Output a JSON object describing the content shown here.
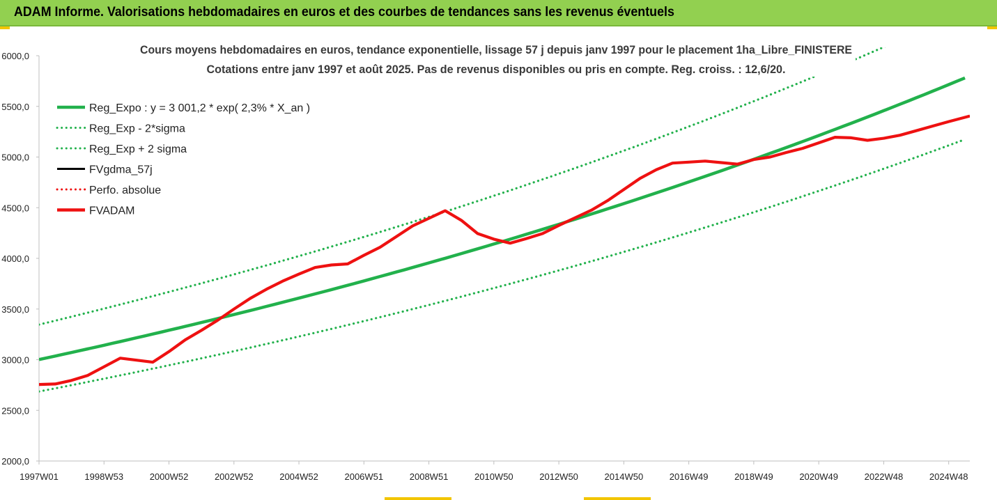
{
  "header": {
    "title": "ADAM Informe. Valorisations hebdomadaires en euros et des courbes de tendances sans les revenus éventuels"
  },
  "colors": {
    "banner": "#92d050",
    "regression": "#22b14c",
    "fvadam": "#ee1111",
    "fvgdma": "#000000",
    "perfo": "#ee1111"
  },
  "chart_data": {
    "type": "line",
    "title": "Cours moyens hebdomadaires en euros, tendance exponentielle, lissage 57 j depuis janv 1997 pour le placement 1ha_Libre_FINISTERE",
    "subtitle": "Cotations entre janv 1997 et août 2025. Pas de revenus disponibles ou pris en compte. Reg. croiss. : 12,6/20.",
    "xlabel": "",
    "ylabel": "",
    "ylim": [
      2000,
      6000
    ],
    "xlim": [
      1997.0,
      2025.65
    ],
    "yticks": [
      2000,
      2500,
      3000,
      3500,
      4000,
      4500,
      5000,
      5500,
      6000
    ],
    "ytick_labels": [
      "2000,0",
      "2500,0",
      "3000,0",
      "3500,0",
      "4000,0",
      "4500,0",
      "5000,0",
      "5500,0",
      "6000,0"
    ],
    "xticks": [
      1997.0,
      1999.0,
      2001.0,
      2003.0,
      2005.0,
      2007.0,
      2009.0,
      2011.0,
      2013.0,
      2015.0,
      2017.0,
      2019.0,
      2021.0,
      2023.0,
      2025.0
    ],
    "xtick_labels": [
      "1997W01",
      "1998W53",
      "2000W52",
      "2002W52",
      "2004W52",
      "2006W51",
      "2008W51",
      "2010W50",
      "2012W50",
      "2014W50",
      "2016W49",
      "2018W49",
      "2020W49",
      "2022W48",
      "2024W48"
    ],
    "grid": false,
    "legend_position": "top-left",
    "legend": [
      {
        "label": "Reg_Expo : y = 3 001,2 * exp( 2,3% *  X_an )",
        "style": "solid-thick",
        "color": "#22b14c"
      },
      {
        "label": "Reg_Exp - 2*sigma",
        "style": "dotted",
        "color": "#22b14c"
      },
      {
        "label": "Reg_Exp + 2 sigma",
        "style": "dotted",
        "color": "#22b14c"
      },
      {
        "label": "FVgdma_57j",
        "style": "solid",
        "color": "#000000"
      },
      {
        "label": "Perfo. absolue",
        "style": "dotted",
        "color": "#ee1111"
      },
      {
        "label": "FVADAM",
        "style": "solid-thick",
        "color": "#ee1111"
      }
    ],
    "regression": {
      "a": 3001.2,
      "rate": 0.023,
      "lower_factor": 0.895,
      "upper_factor": 1.115
    },
    "series": [
      {
        "name": "FVADAM",
        "x": [
          1997.0,
          1997.5,
          1998.0,
          1998.5,
          1999.0,
          1999.5,
          2000.0,
          2000.5,
          2001.0,
          2001.5,
          2002.0,
          2002.5,
          2003.0,
          2003.5,
          2004.0,
          2004.5,
          2005.0,
          2005.5,
          2006.0,
          2006.5,
          2007.0,
          2007.5,
          2008.0,
          2008.5,
          2009.0,
          2009.5,
          2010.0,
          2010.5,
          2011.0,
          2011.5,
          2012.0,
          2012.5,
          2013.0,
          2013.5,
          2014.0,
          2014.5,
          2015.0,
          2015.5,
          2016.0,
          2016.5,
          2017.0,
          2017.5,
          2018.0,
          2018.5,
          2019.0,
          2019.5,
          2020.0,
          2020.5,
          2021.0,
          2021.5,
          2022.0,
          2022.5,
          2023.0,
          2023.5,
          2024.0,
          2024.5,
          2025.0,
          2025.65
        ],
        "values": [
          2755,
          2760,
          2795,
          2845,
          2930,
          3015,
          2995,
          2975,
          3080,
          3195,
          3290,
          3390,
          3500,
          3605,
          3695,
          3775,
          3845,
          3910,
          3935,
          3945,
          4030,
          4110,
          4215,
          4320,
          4395,
          4470,
          4375,
          4245,
          4190,
          4150,
          4195,
          4245,
          4325,
          4400,
          4475,
          4570,
          4680,
          4790,
          4875,
          4940,
          4950,
          4960,
          4945,
          4930,
          4975,
          5000,
          5045,
          5085,
          5140,
          5195,
          5190,
          5165,
          5185,
          5215,
          5260,
          5305,
          5350,
          5405
        ]
      },
      {
        "name": "FVgdma_57j",
        "x": [
          1997.0,
          1997.5,
          1998.0,
          1998.5,
          1999.0,
          1999.5,
          2000.0,
          2000.5,
          2001.0,
          2001.5,
          2002.0,
          2002.5,
          2003.0,
          2003.5,
          2004.0,
          2004.5,
          2005.0,
          2005.5,
          2006.0,
          2006.5,
          2007.0,
          2007.5,
          2008.0,
          2008.5,
          2009.0,
          2009.5,
          2010.0,
          2010.5,
          2011.0,
          2011.5,
          2012.0,
          2012.5,
          2013.0,
          2013.5,
          2014.0,
          2014.5,
          2015.0,
          2015.5,
          2016.0,
          2016.5,
          2017.0,
          2017.5,
          2018.0,
          2018.5,
          2019.0,
          2019.5,
          2020.0,
          2020.5,
          2021.0,
          2021.5,
          2022.0,
          2022.5,
          2023.0,
          2023.5,
          2024.0,
          2024.5,
          2025.0,
          2025.65
        ],
        "values": [
          2755,
          2760,
          2795,
          2845,
          2930,
          3015,
          2995,
          2975,
          3080,
          3195,
          3290,
          3390,
          3500,
          3605,
          3695,
          3775,
          3845,
          3910,
          3935,
          3945,
          4030,
          4110,
          4215,
          4320,
          4395,
          4470,
          4375,
          4245,
          4190,
          4150,
          4195,
          4245,
          4325,
          4400,
          4475,
          4570,
          4680,
          4790,
          4875,
          4940,
          4950,
          4960,
          4945,
          4930,
          4975,
          5000,
          5045,
          5085,
          5140,
          5195,
          5190,
          5165,
          5185,
          5215,
          5260,
          5305,
          5350,
          5405
        ]
      }
    ]
  }
}
